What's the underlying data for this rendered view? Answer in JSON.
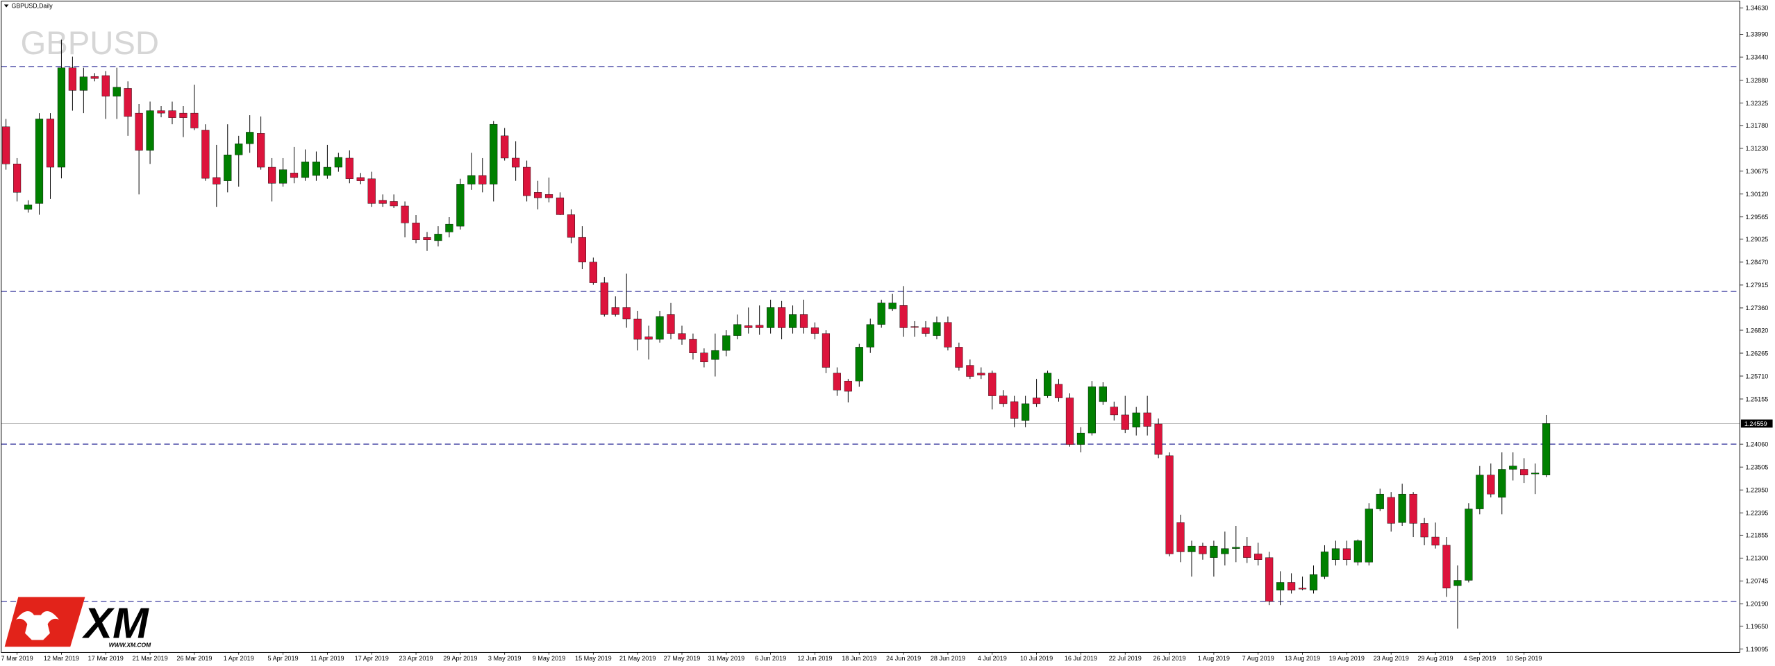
{
  "chart_data": {
    "type": "candlestick",
    "title": "GBPUSD,Daily",
    "watermark": "GBPUSD",
    "categories": [
      null,
      "7 Mar 2019",
      null,
      null,
      null,
      "12 Mar 2019",
      null,
      null,
      null,
      "17 Mar 2019",
      null,
      null,
      null,
      "21 Mar 2019",
      null,
      null,
      null,
      "26 Mar 2019",
      null,
      null,
      null,
      "1 Apr 2019",
      null,
      null,
      null,
      "5 Apr 2019",
      null,
      null,
      null,
      "11 Apr 2019",
      null,
      null,
      null,
      "17 Apr 2019",
      null,
      null,
      null,
      "23 Apr 2019",
      null,
      null,
      null,
      "29 Apr 2019",
      null,
      null,
      null,
      "3 May 2019",
      null,
      null,
      null,
      "9 May 2019",
      null,
      null,
      null,
      "15 May 2019",
      null,
      null,
      null,
      "21 May 2019",
      null,
      null,
      null,
      "27 May 2019",
      null,
      null,
      null,
      "31 May 2019",
      null,
      null,
      null,
      "6 Jun 2019",
      null,
      null,
      null,
      "12 Jun 2019",
      null,
      null,
      null,
      "18 Jun 2019",
      null,
      null,
      null,
      "24 Jun 2019",
      null,
      null,
      null,
      "28 Jun 2019",
      null,
      null,
      null,
      "4 Jul 2019",
      null,
      null,
      null,
      "10 Jul 2019",
      null,
      null,
      null,
      "16 Jul 2019",
      null,
      null,
      null,
      "22 Jul 2019",
      null,
      null,
      null,
      "26 Jul 2019",
      null,
      null,
      null,
      "1 Aug 2019",
      null,
      null,
      null,
      "7 Aug 2019",
      null,
      null,
      null,
      "13 Aug 2019",
      null,
      null,
      null,
      "19 Aug 2019",
      null,
      null,
      null,
      "23 Aug 2019",
      null,
      null,
      null,
      "29 Aug 2019",
      null,
      null,
      null,
      "4 Sep 2019",
      null,
      null,
      null,
      "10 Sep 2019",
      null,
      null
    ],
    "open": [
      1.3175,
      1.3085,
      1.2975,
      1.2989,
      1.3194,
      1.3077,
      1.3318,
      1.3263,
      1.3297,
      1.3299,
      1.3249,
      1.3268,
      1.3208,
      1.3118,
      1.3214,
      1.3214,
      1.3208,
      1.3208,
      1.3167,
      1.3052,
      1.3044,
      1.3107,
      1.3134,
      1.3159,
      1.3077,
      1.3038,
      1.3063,
      1.3052,
      1.3057,
      1.3057,
      1.3077,
      1.3099,
      1.3052,
      1.3049,
      1.2997,
      1.2994,
      1.2983,
      1.2942,
      1.2907,
      1.2899,
      1.292,
      1.2934,
      1.3036,
      1.3057,
      1.3036,
      1.3153,
      1.3099,
      1.3077,
      1.3016,
      1.3011,
      1.3003,
      1.2962,
      1.2907,
      1.2847,
      1.2797,
      1.2737,
      1.2737,
      1.2709,
      1.2666,
      1.266,
      1.272,
      1.2674,
      1.266,
      1.2627,
      1.2611,
      1.2633,
      1.2669,
      1.2693,
      1.2694,
      1.2688,
      1.2737,
      1.2688,
      1.272,
      1.2688,
      1.2674,
      1.2578,
      1.2559,
      1.2559,
      1.2641,
      1.2696,
      1.2734,
      1.2742,
      1.2691,
      1.2688,
      1.2669,
      1.2701,
      1.2641,
      1.2597,
      1.2578,
      1.2578,
      1.2523,
      1.2509,
      1.2463,
      1.2518,
      1.2523,
      1.2551,
      1.2518,
      1.2405,
      1.2433,
      1.2509,
      1.2496,
      1.2477,
      1.2447,
      1.2482,
      1.2455,
      1.2378,
      1.2216,
      1.2145,
      1.2159,
      1.2131,
      1.214,
      1.2153,
      1.2159,
      1.214,
      1.2131,
      1.2052,
      1.2071,
      1.2057,
      1.2052,
      1.2085,
      1.2126,
      1.2153,
      1.212,
      1.212,
      1.2249,
      1.2277,
      1.2216,
      1.2285,
      1.2214,
      1.2181,
      1.2161,
      1.2063,
      1.2076,
      1.2249,
      1.2331,
      1.2277,
      1.2345,
      1.2345,
      1.2334,
      1.2331
    ],
    "high": [
      1.3194,
      1.3099,
      1.2997,
      1.3208,
      1.3208,
      1.3386,
      1.3345,
      1.3318,
      1.3305,
      1.331,
      1.3318,
      1.3285,
      1.323,
      1.3236,
      1.3225,
      1.3236,
      1.3225,
      1.3277,
      1.3181,
      1.3131,
      1.3181,
      1.3153,
      1.3203,
      1.32,
      1.3099,
      1.3099,
      1.3126,
      1.312,
      1.3115,
      1.3131,
      1.3112,
      1.3118,
      1.3063,
      1.3066,
      1.3011,
      1.3011,
      1.2994,
      1.2961,
      1.292,
      1.2934,
      1.2956,
      1.3049,
      1.3112,
      1.3099,
      1.3189,
      1.3172,
      1.314,
      1.3093,
      1.3044,
      1.3052,
      1.3016,
      1.2975,
      1.2934,
      1.2858,
      1.2811,
      1.2764,
      1.2819,
      1.2729,
      1.2693,
      1.2729,
      1.2748,
      1.2693,
      1.2674,
      1.2638,
      1.2674,
      1.2682,
      1.272,
      1.2737,
      1.2742,
      1.2756,
      1.2753,
      1.2742,
      1.2756,
      1.2701,
      1.2682,
      1.2592,
      1.2564,
      1.2649,
      1.271,
      1.2756,
      1.277,
      1.2789,
      1.2704,
      1.2704,
      1.2715,
      1.2715,
      1.2652,
      1.2611,
      1.2592,
      1.2584,
      1.2537,
      1.2523,
      1.2523,
      1.2564,
      1.2584,
      1.2564,
      1.2529,
      1.2447,
      1.2559,
      1.2556,
      1.2509,
      1.2523,
      1.2496,
      1.2523,
      1.2468,
      1.2386,
      1.2235,
      1.2172,
      1.2167,
      1.2172,
      1.2194,
      1.2208,
      1.2181,
      1.2167,
      1.2145,
      1.2098,
      1.2093,
      1.2085,
      1.2112,
      1.2161,
      1.2172,
      1.2172,
      1.2175,
      1.2263,
      1.2298,
      1.229,
      1.231,
      1.229,
      1.2227,
      1.2216,
      1.2181,
      1.2112,
      1.2263,
      1.2353,
      1.2359,
      1.2386,
      1.2386,
      1.2372,
      1.2359,
      1.2477
    ],
    "low": [
      1.3071,
      1.2994,
      1.2967,
      1.2962,
      1.3,
      1.305,
      1.3214,
      1.3208,
      1.3285,
      1.3194,
      1.3194,
      1.3153,
      1.3011,
      1.3085,
      1.3198,
      1.3181,
      1.315,
      1.3167,
      1.3044,
      1.2981,
      1.3016,
      1.303,
      1.3112,
      1.3071,
      1.2994,
      1.303,
      1.3038,
      1.3044,
      1.3044,
      1.3049,
      1.3066,
      1.3038,
      1.3036,
      1.2981,
      1.2981,
      1.2978,
      1.2907,
      1.2893,
      1.2874,
      1.2885,
      1.2907,
      1.2926,
      1.3022,
      1.3016,
      1.2994,
      1.3093,
      1.3044,
      1.2994,
      1.2975,
      1.2992,
      1.2961,
      1.2893,
      1.283,
      1.2792,
      1.2715,
      1.2715,
      1.2688,
      1.2633,
      1.2611,
      1.2652,
      1.266,
      1.2647,
      1.2611,
      1.2592,
      1.257,
      1.2619,
      1.266,
      1.2674,
      1.2671,
      1.2674,
      1.266,
      1.2674,
      1.2674,
      1.266,
      1.2578,
      1.2523,
      1.2507,
      1.2545,
      1.2627,
      1.2688,
      1.2729,
      1.2666,
      1.2666,
      1.2666,
      1.266,
      1.2633,
      1.2584,
      1.2564,
      1.2564,
      1.249,
      1.2496,
      1.2447,
      1.2447,
      1.2496,
      1.2518,
      1.2509,
      1.24,
      1.2386,
      1.2427,
      1.2501,
      1.2463,
      1.2433,
      1.2427,
      1.2427,
      1.2372,
      1.2134,
      1.212,
      1.2085,
      1.2126,
      1.2085,
      1.2112,
      1.212,
      1.2118,
      1.2112,
      1.2016,
      1.2016,
      1.2044,
      1.2052,
      1.2044,
      1.2079,
      1.2112,
      1.2112,
      1.2112,
      1.2112,
      1.2244,
      1.2194,
      1.2208,
      1.2181,
      1.2161,
      1.2153,
      1.2036,
      1.1959,
      1.2071,
      1.2236,
      1.2277,
      1.2236,
      1.2318,
      1.2312,
      1.2285,
      1.2326
    ],
    "close": [
      1.3085,
      1.3016,
      1.2986,
      1.3194,
      1.3077,
      1.3318,
      1.3263,
      1.3296,
      1.3292,
      1.3249,
      1.3271,
      1.32,
      1.3118,
      1.3214,
      1.3208,
      1.3197,
      1.3197,
      1.3172,
      1.305,
      1.3036,
      1.3107,
      1.3134,
      1.3162,
      1.3077,
      1.3038,
      1.3071,
      1.3052,
      1.309,
      1.309,
      1.3077,
      1.3101,
      1.3049,
      1.3044,
      1.2989,
      1.2989,
      1.2983,
      1.2942,
      1.2901,
      1.2901,
      1.2915,
      1.2939,
      1.3036,
      1.3057,
      1.3036,
      1.3181,
      1.3099,
      1.3077,
      1.3008,
      1.3003,
      1.3003,
      1.2962,
      1.2907,
      1.2847,
      1.2797,
      1.272,
      1.272,
      1.2709,
      1.266,
      1.266,
      1.2715,
      1.2674,
      1.266,
      1.2627,
      1.2605,
      1.2633,
      1.2669,
      1.2696,
      1.2688,
      1.2688,
      1.2737,
      1.2688,
      1.272,
      1.2688,
      1.2674,
      1.2592,
      1.2537,
      1.2534,
      1.2641,
      1.2696,
      1.2748,
      1.2748,
      1.2688,
      1.269,
      1.2674,
      1.2701,
      1.2641,
      1.2592,
      1.257,
      1.2573,
      1.2523,
      1.2504,
      1.2468,
      1.2504,
      1.2504,
      1.2578,
      1.2518,
      1.2405,
      1.2433,
      1.2545,
      1.2545,
      1.2477,
      1.2441,
      1.2482,
      1.2449,
      1.2381,
      1.214,
      1.2145,
      1.2159,
      1.214,
      1.2159,
      1.2153,
      1.2156,
      1.2131,
      1.2126,
      1.2025,
      1.2071,
      1.2052,
      1.2055,
      1.209,
      1.2145,
      1.2153,
      1.2126,
      1.2172,
      1.2249,
      1.2285,
      1.2214,
      1.2285,
      1.2214,
      1.2181,
      1.2161,
      1.2057,
      1.2076,
      1.2249,
      1.2331,
      1.2285,
      1.2345,
      1.2353,
      1.2331,
      1.2336,
      1.2456
    ],
    "up_color": "#008000",
    "down_color": "#dc143c",
    "wick_color": "#000000",
    "ylim": [
      1.19095,
      1.3463
    ],
    "yticks": [
      {
        "value": 1.3463,
        "label": "1.34630"
      },
      {
        "value": 1.3399,
        "label": "1.33990"
      },
      {
        "value": 1.3344,
        "label": "1.33440"
      },
      {
        "value": 1.3288,
        "label": "1.32880"
      },
      1.32325,
      {
        "value": 1.3178,
        "label": "1.31780"
      },
      {
        "value": 1.3123,
        "label": "1.31230"
      },
      1.30675,
      {
        "value": 1.3012,
        "label": "1.30120"
      },
      1.29565,
      1.29025,
      {
        "value": 1.2847,
        "label": "1.28470"
      },
      1.27915,
      {
        "value": 1.2736,
        "label": "1.27360"
      },
      {
        "value": 1.2682,
        "label": "1.26820"
      },
      1.26265,
      {
        "value": 1.2571,
        "label": "1.25710"
      },
      1.25155,
      {
        "value": 1.2406,
        "label": "1.24060"
      },
      1.23505,
      {
        "value": 1.2295,
        "label": "1.22950"
      },
      1.22395,
      1.21855,
      {
        "value": 1.213,
        "label": "1.21300"
      },
      1.20745,
      {
        "value": 1.2019,
        "label": "1.20190"
      },
      {
        "value": 1.1965,
        "label": "1.19650"
      },
      1.19095
    ],
    "current_price": 1.24559,
    "levels": [
      1.3321,
      1.2776,
      1.2406,
      1.2025
    ],
    "level_color": "#3a3a9e"
  },
  "logo": {
    "text": "XM",
    "url": "WWW.XM.COM"
  }
}
